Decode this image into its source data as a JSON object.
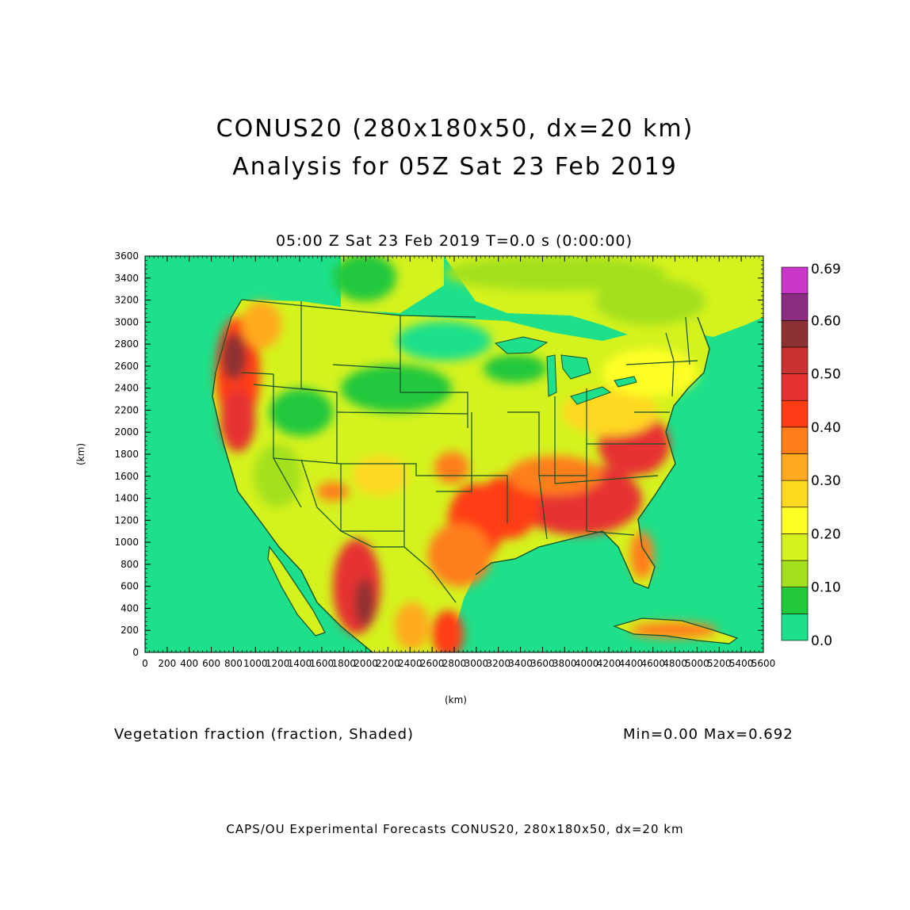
{
  "title_line1": "CONUS20 (280x180x50, dx=20 km)",
  "title_line2": "Analysis for 05Z Sat 23 Feb 2019",
  "subtitle": "05:00 Z Sat 23 Feb 2019    T=0.0 s (0:00:00)",
  "caption_left": "Vegetation fraction (fraction, Shaded)",
  "caption_right": "Min=0.00  Max=0.692",
  "footer": "CAPS/OU Experimental Forecasts  CONUS20, 280x180x50, dx=20 km",
  "chart_data": {
    "type": "heatmap",
    "title": "CONUS20 (280x180x50, dx=20 km)",
    "xlabel": "(km)",
    "ylabel": "(km)",
    "xlim": [
      0,
      5600
    ],
    "ylim": [
      0,
      3600
    ],
    "x_ticks": [
      "0",
      "200",
      "400",
      "600",
      "800",
      "1000",
      "1200",
      "1400",
      "1600",
      "1800",
      "2000",
      "2200",
      "2400",
      "2600",
      "2800",
      "3000",
      "3200",
      "3400",
      "3600",
      "3800",
      "4000",
      "4200",
      "4400",
      "4600",
      "4800",
      "5000",
      "5200",
      "5400",
      "5600"
    ],
    "y_ticks": [
      "0",
      "200",
      "400",
      "600",
      "800",
      "1000",
      "1200",
      "1400",
      "1600",
      "1800",
      "2000",
      "2200",
      "2400",
      "2600",
      "2800",
      "3000",
      "3200",
      "3400",
      "3600"
    ],
    "colorbar_labels": [
      "0.0",
      "0.10",
      "0.20",
      "0.30",
      "0.40",
      "0.50",
      "0.60",
      "0.69"
    ],
    "colorbar_colors": [
      "#1ee08a",
      "#22c83c",
      "#a4e01c",
      "#d4f21e",
      "#ffff28",
      "#ffd820",
      "#ffaa1e",
      "#ff7e1a",
      "#ff3c14",
      "#e63232",
      "#c83232",
      "#8c3232",
      "#8c2d82",
      "#c837c8"
    ],
    "min": 0.0,
    "max": 0.692,
    "ocean_color": "#1ee08a",
    "border_color": "#14502a"
  }
}
